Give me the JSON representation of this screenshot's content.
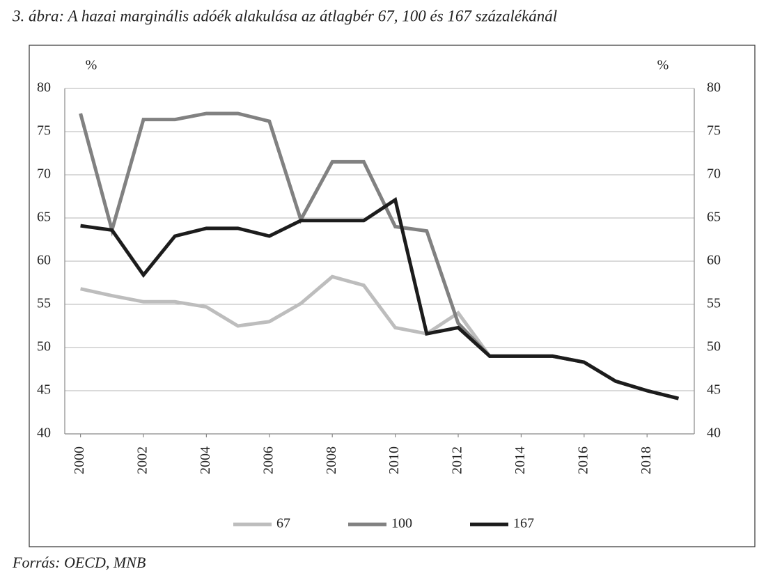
{
  "chart_data": {
    "type": "line",
    "title": "3. ábra: A hazai marginális adóék alakulása az átlagbér 67, 100 és 167 százalékánál",
    "source": "Forrás: OECD, MNB",
    "ylabel": "%",
    "y2label": "%",
    "x": [
      2000,
      2001,
      2002,
      2003,
      2004,
      2005,
      2006,
      2007,
      2008,
      2009,
      2010,
      2011,
      2012,
      2013,
      2014,
      2015,
      2016,
      2017,
      2018,
      2019
    ],
    "xlim": [
      1999.5,
      2019.5
    ],
    "xticks": [
      2000,
      2002,
      2004,
      2006,
      2008,
      2010,
      2012,
      2014,
      2016,
      2018
    ],
    "ylim": [
      40,
      80
    ],
    "yticks": [
      40,
      45,
      50,
      55,
      60,
      65,
      70,
      75,
      80
    ],
    "y2lim": [
      40,
      80
    ],
    "y2ticks": [
      40,
      45,
      50,
      55,
      60,
      65,
      70,
      75,
      80
    ],
    "grid": true,
    "legend": "bottom",
    "series": [
      {
        "name": "67",
        "color": "#bdbdbd",
        "values": [
          56.8,
          56.0,
          55.3,
          55.3,
          54.7,
          52.5,
          53.0,
          55.1,
          58.2,
          57.2,
          52.3,
          51.6,
          54.0,
          49.0,
          49.0,
          49.0,
          48.3,
          46.1,
          45.0,
          44.1
        ]
      },
      {
        "name": "100",
        "color": "#818181",
        "values": [
          77.1,
          63.6,
          76.4,
          76.4,
          77.1,
          77.1,
          76.2,
          64.8,
          71.5,
          71.5,
          64.0,
          63.5,
          52.8,
          49.0,
          49.0,
          49.0,
          48.3,
          46.1,
          45.0,
          44.1
        ]
      },
      {
        "name": "167",
        "color": "#1c1c1c",
        "values": [
          64.1,
          63.6,
          58.4,
          62.9,
          63.8,
          63.8,
          62.9,
          64.7,
          64.7,
          64.7,
          67.1,
          51.6,
          52.3,
          49.0,
          49.0,
          49.0,
          48.3,
          46.1,
          45.0,
          44.1
        ]
      }
    ]
  }
}
